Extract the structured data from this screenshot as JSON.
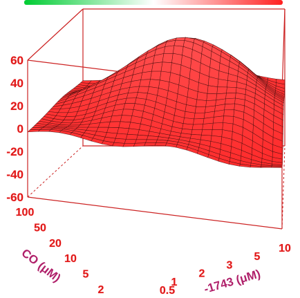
{
  "chart_data": {
    "type": "surface3d",
    "colorbar": {
      "colors": [
        "#00cc33",
        "#ffffff",
        "#ff2020"
      ]
    },
    "surface_color": "#ff3a3a",
    "mesh_color": "#3a0a0a",
    "frame_color": "#cc2222",
    "z_axis": {
      "ticks": [
        "60",
        "40",
        "20",
        "0",
        "-20",
        "-40",
        "-60"
      ],
      "range": [
        -60,
        60
      ]
    },
    "co_axis": {
      "label": "CO (μM)",
      "ticks": [
        "100",
        "50",
        "20",
        "10",
        "5",
        "2"
      ]
    },
    "x_axis": {
      "label": "-1743 (μM)",
      "ticks": [
        "0.5",
        "1",
        "2",
        "3",
        "5",
        "10"
      ]
    },
    "grid_size": [
      24,
      24
    ]
  }
}
